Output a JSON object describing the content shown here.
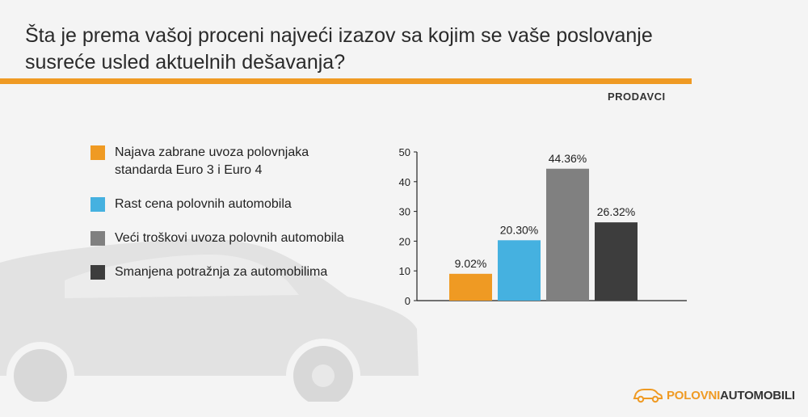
{
  "title": "Šta je prema vašoj proceni najveći izazov sa kojim se vaše poslovanje susreće usled aktuelnih dešavanja?",
  "segment_label": "PRODAVCI",
  "brand": {
    "part1": "POLOVNI",
    "part2": "AUTOMOBILI",
    "icon": "car-logo-icon"
  },
  "colors": {
    "accent": "#ef9a23",
    "blue": "#45b1e0",
    "gray": "#808080",
    "dark": "#3d3d3d"
  },
  "legend": [
    {
      "label": "Najava zabrane uvoza polovnjaka standarda Euro 3 i Euro 4",
      "color": "#ef9a23"
    },
    {
      "label": "Rast cena polovnih automobila",
      "color": "#45b1e0"
    },
    {
      "label": "Veći troškovi uvoza polovnih automobila",
      "color": "#808080"
    },
    {
      "label": "Smanjena potražnja za automobilima",
      "color": "#3d3d3d"
    }
  ],
  "chart_data": {
    "type": "bar",
    "categories": [
      "Najava zabrane uvoza polovnjaka standarda Euro 3 i Euro 4",
      "Rast cena polovnih automobila",
      "Veći troškovi uvoza polovnih automobila",
      "Smanjena potražnja za automobilima"
    ],
    "values": [
      9.02,
      20.3,
      44.36,
      26.32
    ],
    "data_labels": [
      "9.02%",
      "20.30%",
      "44.36%",
      "26.32%"
    ],
    "colors": [
      "#ef9a23",
      "#45b1e0",
      "#808080",
      "#3d3d3d"
    ],
    "yticks": [
      "0",
      "10",
      "20",
      "30",
      "40",
      "50"
    ],
    "ylim": [
      0,
      50
    ],
    "title": "",
    "xlabel": "",
    "ylabel": "",
    "grid": false,
    "legend_position": "left"
  }
}
